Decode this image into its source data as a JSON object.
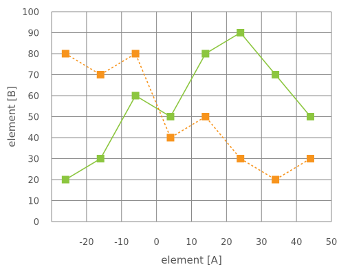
{
  "chart_data": {
    "type": "line",
    "xlabel": "element [A]",
    "ylabel": "element [B]",
    "xlim": [
      -30,
      50
    ],
    "ylim": [
      0,
      100
    ],
    "xticks": [
      -20,
      -10,
      0,
      10,
      20,
      30,
      40,
      50
    ],
    "yticks": [
      0,
      10,
      20,
      30,
      40,
      50,
      60,
      70,
      80,
      90,
      100
    ],
    "grid": true,
    "series": [
      {
        "color": "#8cc63f",
        "line_style": "solid",
        "marker": "square",
        "x": [
          -26,
          -16,
          -6,
          4,
          14,
          24,
          34,
          44
        ],
        "y": [
          20,
          30,
          60,
          50,
          80,
          90,
          70,
          50
        ]
      },
      {
        "color": "#f7941d",
        "line_style": "dotted",
        "marker": "square",
        "x": [
          -26,
          -16,
          -6,
          4,
          14,
          24,
          34,
          44
        ],
        "y": [
          80,
          70,
          80,
          40,
          50,
          30,
          20,
          30
        ]
      }
    ]
  }
}
